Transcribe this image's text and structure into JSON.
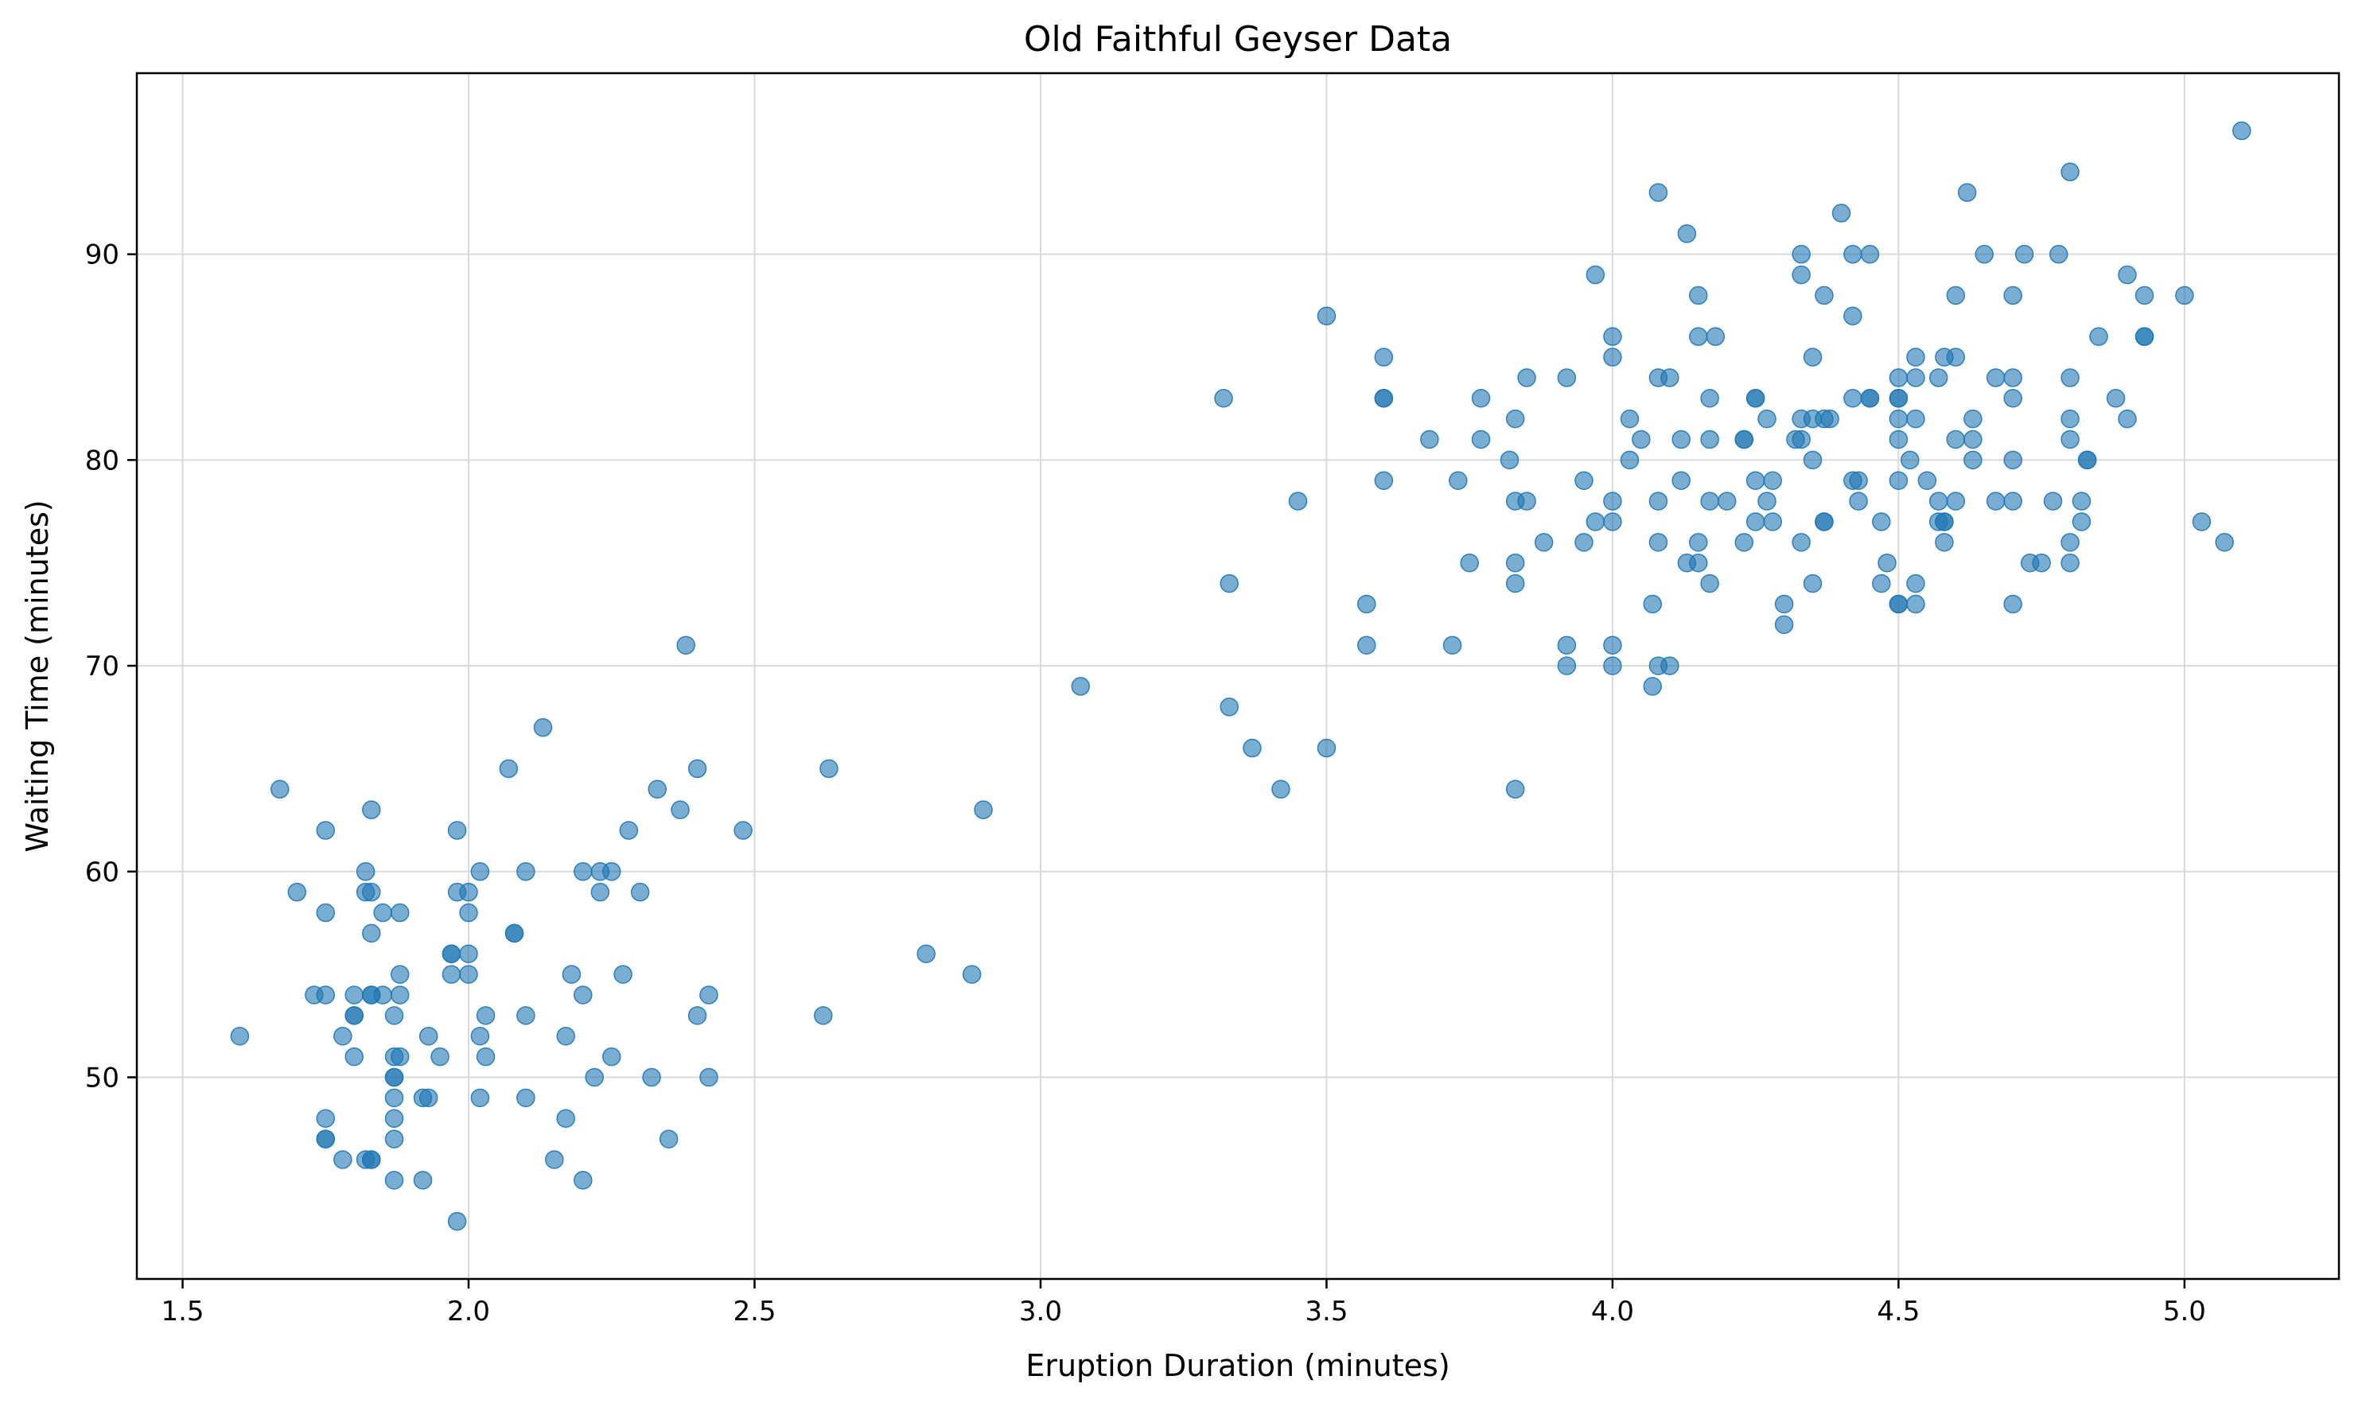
{
  "chart_data": {
    "type": "scatter",
    "title": "Old Faithful Geyser Data",
    "xlabel": "Eruption Duration (minutes)",
    "ylabel": "Waiting Time (minutes)",
    "xlim": [
      1.42,
      5.27
    ],
    "ylim": [
      40.2,
      98.8
    ],
    "xticks": [
      1.5,
      2.0,
      2.5,
      3.0,
      3.5,
      4.0,
      4.5,
      5.0
    ],
    "yticks": [
      50,
      60,
      70,
      80,
      90
    ],
    "grid": true,
    "marker_color": "#1f77b4",
    "marker_alpha": 0.6,
    "points": [
      [
        1.6,
        52
      ],
      [
        1.67,
        64
      ],
      [
        1.7,
        59
      ],
      [
        1.73,
        54
      ],
      [
        1.75,
        62
      ],
      [
        1.75,
        58
      ],
      [
        1.75,
        54
      ],
      [
        1.75,
        48
      ],
      [
        1.75,
        47
      ],
      [
        1.75,
        47
      ],
      [
        1.78,
        52
      ],
      [
        1.78,
        46
      ],
      [
        1.8,
        54
      ],
      [
        1.8,
        53
      ],
      [
        1.8,
        53
      ],
      [
        1.8,
        51
      ],
      [
        1.82,
        60
      ],
      [
        1.82,
        59
      ],
      [
        1.82,
        46
      ],
      [
        1.83,
        63
      ],
      [
        1.83,
        59
      ],
      [
        1.83,
        57
      ],
      [
        1.83,
        54
      ],
      [
        1.83,
        54
      ],
      [
        1.83,
        46
      ],
      [
        1.83,
        46
      ],
      [
        1.85,
        58
      ],
      [
        1.85,
        54
      ],
      [
        1.87,
        53
      ],
      [
        1.87,
        51
      ],
      [
        1.87,
        50
      ],
      [
        1.87,
        50
      ],
      [
        1.87,
        49
      ],
      [
        1.87,
        48
      ],
      [
        1.87,
        47
      ],
      [
        1.87,
        45
      ],
      [
        1.88,
        58
      ],
      [
        1.88,
        55
      ],
      [
        1.88,
        54
      ],
      [
        1.88,
        51
      ],
      [
        1.92,
        49
      ],
      [
        1.92,
        45
      ],
      [
        1.93,
        52
      ],
      [
        1.93,
        49
      ],
      [
        1.95,
        51
      ],
      [
        1.97,
        56
      ],
      [
        1.97,
        56
      ],
      [
        1.97,
        55
      ],
      [
        1.98,
        62
      ],
      [
        1.98,
        59
      ],
      [
        1.98,
        43
      ],
      [
        2.0,
        59
      ],
      [
        2.0,
        58
      ],
      [
        2.0,
        56
      ],
      [
        2.0,
        55
      ],
      [
        2.02,
        60
      ],
      [
        2.02,
        52
      ],
      [
        2.02,
        49
      ],
      [
        2.03,
        53
      ],
      [
        2.03,
        51
      ],
      [
        2.07,
        65
      ],
      [
        2.08,
        57
      ],
      [
        2.08,
        57
      ],
      [
        2.1,
        60
      ],
      [
        2.1,
        53
      ],
      [
        2.1,
        49
      ],
      [
        2.13,
        67
      ],
      [
        2.15,
        46
      ],
      [
        2.17,
        52
      ],
      [
        2.17,
        48
      ],
      [
        2.18,
        55
      ],
      [
        2.2,
        60
      ],
      [
        2.2,
        54
      ],
      [
        2.2,
        45
      ],
      [
        2.22,
        50
      ],
      [
        2.23,
        60
      ],
      [
        2.23,
        59
      ],
      [
        2.25,
        60
      ],
      [
        2.25,
        51
      ],
      [
        2.27,
        55
      ],
      [
        2.28,
        62
      ],
      [
        2.3,
        59
      ],
      [
        2.32,
        50
      ],
      [
        2.33,
        64
      ],
      [
        2.35,
        47
      ],
      [
        2.37,
        63
      ],
      [
        2.38,
        71
      ],
      [
        2.4,
        65
      ],
      [
        2.4,
        53
      ],
      [
        2.42,
        54
      ],
      [
        2.42,
        50
      ],
      [
        2.48,
        62
      ],
      [
        2.62,
        53
      ],
      [
        2.63,
        65
      ],
      [
        2.8,
        56
      ],
      [
        2.88,
        55
      ],
      [
        2.9,
        63
      ],
      [
        3.07,
        69
      ],
      [
        3.32,
        83
      ],
      [
        3.33,
        74
      ],
      [
        3.33,
        68
      ],
      [
        3.37,
        66
      ],
      [
        3.42,
        64
      ],
      [
        3.45,
        78
      ],
      [
        3.5,
        87
      ],
      [
        3.5,
        66
      ],
      [
        3.57,
        73
      ],
      [
        3.57,
        71
      ],
      [
        3.6,
        85
      ],
      [
        3.6,
        83
      ],
      [
        3.6,
        83
      ],
      [
        3.6,
        79
      ],
      [
        3.68,
        81
      ],
      [
        3.72,
        71
      ],
      [
        3.73,
        79
      ],
      [
        3.75,
        75
      ],
      [
        3.77,
        83
      ],
      [
        3.77,
        81
      ],
      [
        3.82,
        80
      ],
      [
        3.83,
        82
      ],
      [
        3.83,
        78
      ],
      [
        3.83,
        75
      ],
      [
        3.83,
        74
      ],
      [
        3.83,
        64
      ],
      [
        3.85,
        84
      ],
      [
        3.85,
        78
      ],
      [
        3.88,
        76
      ],
      [
        3.92,
        84
      ],
      [
        3.92,
        71
      ],
      [
        3.92,
        70
      ],
      [
        3.95,
        79
      ],
      [
        3.95,
        76
      ],
      [
        3.97,
        89
      ],
      [
        3.97,
        77
      ],
      [
        4.0,
        86
      ],
      [
        4.0,
        85
      ],
      [
        4.0,
        78
      ],
      [
        4.0,
        77
      ],
      [
        4.0,
        71
      ],
      [
        4.0,
        70
      ],
      [
        4.03,
        82
      ],
      [
        4.03,
        80
      ],
      [
        4.05,
        81
      ],
      [
        4.07,
        73
      ],
      [
        4.07,
        69
      ],
      [
        4.08,
        93
      ],
      [
        4.08,
        84
      ],
      [
        4.08,
        78
      ],
      [
        4.08,
        76
      ],
      [
        4.08,
        70
      ],
      [
        4.1,
        84
      ],
      [
        4.1,
        70
      ],
      [
        4.12,
        81
      ],
      [
        4.12,
        79
      ],
      [
        4.13,
        91
      ],
      [
        4.13,
        75
      ],
      [
        4.15,
        88
      ],
      [
        4.15,
        86
      ],
      [
        4.15,
        76
      ],
      [
        4.15,
        75
      ],
      [
        4.17,
        83
      ],
      [
        4.17,
        81
      ],
      [
        4.17,
        78
      ],
      [
        4.17,
        74
      ],
      [
        4.18,
        86
      ],
      [
        4.2,
        78
      ],
      [
        4.23,
        81
      ],
      [
        4.23,
        81
      ],
      [
        4.23,
        76
      ],
      [
        4.25,
        83
      ],
      [
        4.25,
        83
      ],
      [
        4.25,
        79
      ],
      [
        4.25,
        77
      ],
      [
        4.27,
        82
      ],
      [
        4.27,
        78
      ],
      [
        4.28,
        79
      ],
      [
        4.28,
        77
      ],
      [
        4.3,
        73
      ],
      [
        4.3,
        72
      ],
      [
        4.32,
        81
      ],
      [
        4.33,
        90
      ],
      [
        4.33,
        89
      ],
      [
        4.33,
        82
      ],
      [
        4.33,
        81
      ],
      [
        4.33,
        76
      ],
      [
        4.35,
        85
      ],
      [
        4.35,
        82
      ],
      [
        4.35,
        80
      ],
      [
        4.35,
        74
      ],
      [
        4.37,
        88
      ],
      [
        4.37,
        82
      ],
      [
        4.37,
        77
      ],
      [
        4.37,
        77
      ],
      [
        4.38,
        82
      ],
      [
        4.4,
        92
      ],
      [
        4.42,
        90
      ],
      [
        4.42,
        87
      ],
      [
        4.42,
        83
      ],
      [
        4.42,
        79
      ],
      [
        4.43,
        79
      ],
      [
        4.43,
        78
      ],
      [
        4.45,
        90
      ],
      [
        4.45,
        83
      ],
      [
        4.45,
        83
      ],
      [
        4.47,
        77
      ],
      [
        4.47,
        74
      ],
      [
        4.48,
        75
      ],
      [
        4.5,
        84
      ],
      [
        4.5,
        83
      ],
      [
        4.5,
        83
      ],
      [
        4.5,
        82
      ],
      [
        4.5,
        81
      ],
      [
        4.5,
        79
      ],
      [
        4.5,
        73
      ],
      [
        4.5,
        73
      ],
      [
        4.52,
        80
      ],
      [
        4.53,
        85
      ],
      [
        4.53,
        84
      ],
      [
        4.53,
        82
      ],
      [
        4.53,
        74
      ],
      [
        4.53,
        73
      ],
      [
        4.55,
        79
      ],
      [
        4.57,
        84
      ],
      [
        4.57,
        78
      ],
      [
        4.57,
        77
      ],
      [
        4.58,
        85
      ],
      [
        4.58,
        77
      ],
      [
        4.58,
        77
      ],
      [
        4.58,
        76
      ],
      [
        4.6,
        88
      ],
      [
        4.6,
        85
      ],
      [
        4.6,
        81
      ],
      [
        4.6,
        78
      ],
      [
        4.62,
        93
      ],
      [
        4.63,
        82
      ],
      [
        4.63,
        81
      ],
      [
        4.63,
        80
      ],
      [
        4.65,
        90
      ],
      [
        4.67,
        84
      ],
      [
        4.67,
        78
      ],
      [
        4.7,
        88
      ],
      [
        4.7,
        84
      ],
      [
        4.7,
        83
      ],
      [
        4.7,
        80
      ],
      [
        4.7,
        78
      ],
      [
        4.7,
        73
      ],
      [
        4.72,
        90
      ],
      [
        4.73,
        75
      ],
      [
        4.75,
        75
      ],
      [
        4.77,
        78
      ],
      [
        4.78,
        90
      ],
      [
        4.8,
        94
      ],
      [
        4.8,
        84
      ],
      [
        4.8,
        82
      ],
      [
        4.8,
        81
      ],
      [
        4.8,
        76
      ],
      [
        4.8,
        75
      ],
      [
        4.82,
        78
      ],
      [
        4.82,
        77
      ],
      [
        4.83,
        80
      ],
      [
        4.83,
        80
      ],
      [
        4.85,
        86
      ],
      [
        4.88,
        83
      ],
      [
        4.9,
        89
      ],
      [
        4.9,
        82
      ],
      [
        4.93,
        88
      ],
      [
        4.93,
        86
      ],
      [
        4.93,
        86
      ],
      [
        5.0,
        88
      ],
      [
        5.03,
        77
      ],
      [
        5.07,
        76
      ],
      [
        5.1,
        96
      ]
    ]
  }
}
